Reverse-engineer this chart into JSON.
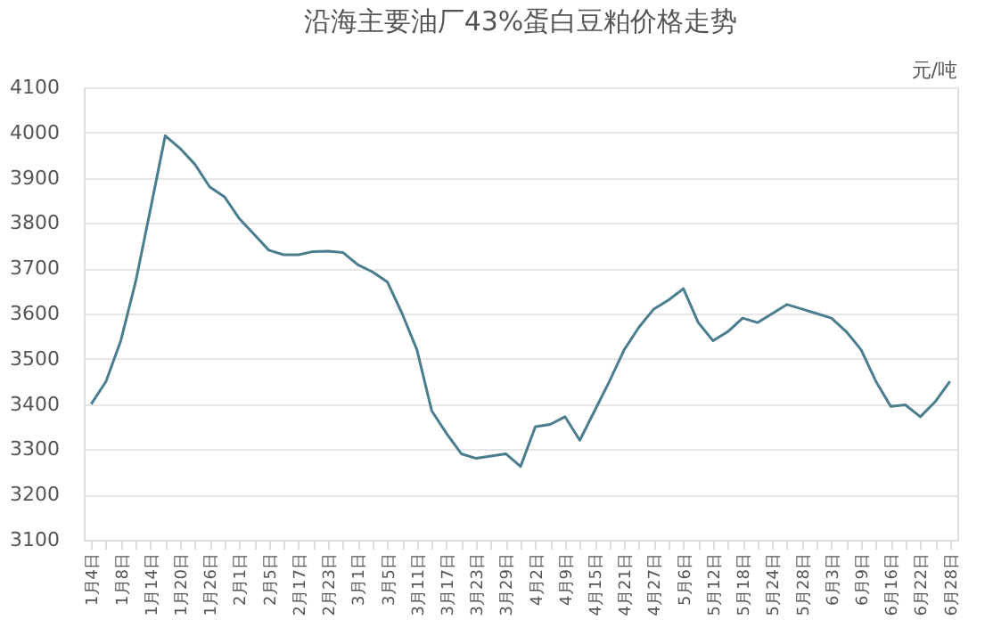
{
  "chart_data": {
    "type": "line",
    "title": "沿海主要油厂43%蛋白豆粕价格走势",
    "annotations": [
      "元/吨"
    ],
    "categories": [
      "1月4日",
      null,
      "1月8日",
      null,
      "1月14日",
      null,
      "1月20日",
      null,
      "1月26日",
      null,
      "2月1日",
      null,
      "2月5日",
      null,
      "2月17日",
      null,
      "2月23日",
      null,
      "3月1日",
      null,
      "3月5日",
      null,
      "3月11日",
      null,
      "3月17日",
      null,
      "3月23日",
      null,
      "3月29日",
      null,
      "4月2日",
      null,
      "4月9日",
      null,
      "4月15日",
      null,
      "4月21日",
      null,
      "4月27日",
      null,
      "5月6日",
      null,
      "5月12日",
      null,
      "5月18日",
      null,
      "5月24日",
      null,
      "5月28日",
      null,
      "6月3日",
      null,
      "6月9日",
      null,
      "6月16日",
      null,
      "6月22日",
      null,
      "6月28日"
    ],
    "series": [
      {
        "color": "#4a7d8e",
        "values": [
          3400,
          3450,
          3540,
          3670,
          3830,
          3993,
          3965,
          3930,
          3880,
          3858,
          3810,
          3775,
          3740,
          3730,
          3730,
          3737,
          3738,
          3735,
          3708,
          3692,
          3670,
          3600,
          3520,
          3385,
          3335,
          3290,
          3280,
          3285,
          3290,
          3262,
          3350,
          3355,
          3372,
          3320,
          3385,
          3450,
          3520,
          3570,
          3610,
          3630,
          3655,
          3580,
          3540,
          3560,
          3590,
          3580,
          3600,
          3620,
          3610,
          3600,
          3590,
          3560,
          3520,
          3450,
          3395,
          3398,
          3372,
          3405,
          3450
        ]
      }
    ],
    "ylim": [
      3100,
      4100
    ],
    "yticks": [
      3100,
      3200,
      3300,
      3400,
      3500,
      3600,
      3700,
      3800,
      3900,
      4000,
      4100
    ],
    "grid": "y",
    "marker": "none",
    "line_style": "solid"
  }
}
